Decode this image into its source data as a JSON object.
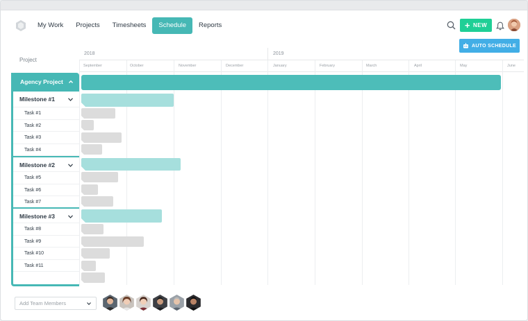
{
  "nav": {
    "items": [
      {
        "label": "My Work",
        "active": false
      },
      {
        "label": "Projects",
        "active": false
      },
      {
        "label": "Timesheets",
        "active": false
      },
      {
        "label": "Schedule",
        "active": true
      },
      {
        "label": "Reports",
        "active": false
      }
    ]
  },
  "header": {
    "new_label": "NEW",
    "auto_schedule_label": "AUTO SCHEDULE"
  },
  "gantt": {
    "project_column_label": "Project",
    "years": [
      "2018",
      "2019"
    ],
    "months": [
      "September",
      "October",
      "November",
      "December",
      "January",
      "February",
      "March",
      "April",
      "May",
      "June"
    ],
    "project": {
      "name": "Agency Project"
    },
    "milestones": [
      {
        "name": "Milestone #1",
        "tasks": [
          "Task #1",
          "Task #2",
          "Task #3",
          "Task #4"
        ]
      },
      {
        "name": "Milestone #2",
        "tasks": [
          "Task #5",
          "Task #6",
          "Task #7"
        ]
      },
      {
        "name": "Milestone #3",
        "tasks": [
          "Task #8",
          "Task #9",
          "Task #10",
          "Task #11"
        ]
      }
    ]
  },
  "footer": {
    "team_select_placeholder": "Add Team Members",
    "member_count": 6
  },
  "colors": {
    "accent": "#46b8b5",
    "new_button": "#1fcf96",
    "auto_schedule": "#42aee6",
    "milestone_bar": "#a6dfdd",
    "task_bar": "#dcdcdc"
  }
}
